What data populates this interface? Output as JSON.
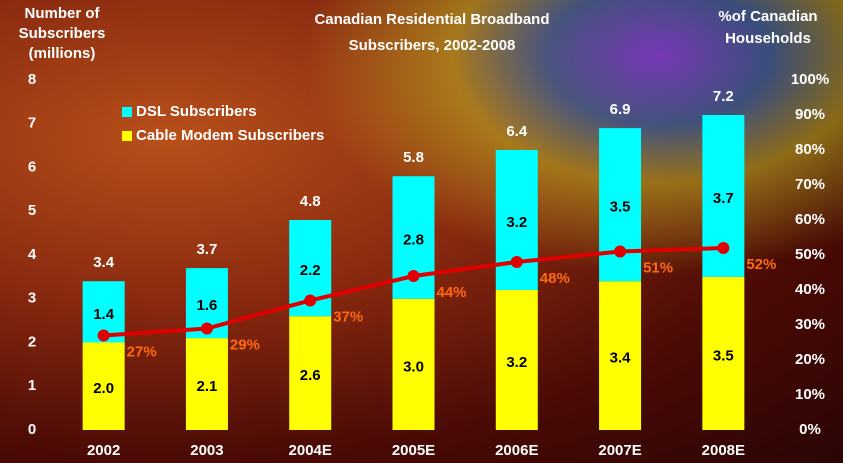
{
  "chart_data": {
    "type": "stacked_bar_line",
    "title": [
      "Canadian Residential Broadband",
      "Subscribers, 2002-2008"
    ],
    "y_label": [
      "Number of",
      "Subscribers",
      "(millions)"
    ],
    "y2_label": [
      "%of Canadian",
      "Households"
    ],
    "categories": [
      "2002",
      "2003",
      "2004E",
      "2005E",
      "2006E",
      "2007E",
      "2008E"
    ],
    "series": [
      {
        "name": "DSL Subscribers",
        "color": "#00ffff",
        "values": [
          1.4,
          1.6,
          2.2,
          2.8,
          3.2,
          3.5,
          3.7
        ]
      },
      {
        "name": "Cable Modem Subscribers",
        "color": "#ffff00",
        "values": [
          2.0,
          2.1,
          2.6,
          3.0,
          3.2,
          3.4,
          3.5
        ],
        "value_labels": [
          "2.0",
          "2.1",
          "2.6",
          "3.0",
          "3.2",
          "3.4",
          "3.5"
        ]
      }
    ],
    "totals": [
      3.4,
      3.7,
      4.8,
      5.8,
      6.4,
      6.9,
      7.2
    ],
    "line": {
      "axis": "y2",
      "color": "#e00000",
      "label_color": "#ff6a10",
      "values": [
        27,
        29,
        37,
        44,
        48,
        51,
        52
      ],
      "value_labels": [
        "27%",
        "29%",
        "37%",
        "44%",
        "48%",
        "51%",
        "52%"
      ]
    },
    "ylim": [
      0,
      8
    ],
    "yticks": [
      0,
      1,
      2,
      3,
      4,
      5,
      6,
      7,
      8
    ],
    "y2lim": [
      0,
      100
    ],
    "y2ticks": [
      {
        "value": 0,
        "label": "0%"
      },
      {
        "value": 10,
        "label": "10%"
      },
      {
        "value": 20,
        "label": "20%"
      },
      {
        "value": 30,
        "label": "30%"
      },
      {
        "value": 40,
        "label": "40%"
      },
      {
        "value": 50,
        "label": "50%"
      },
      {
        "value": 60,
        "label": "60%"
      },
      {
        "value": 70,
        "label": "70%"
      },
      {
        "value": 80,
        "label": "80%"
      },
      {
        "value": 90,
        "label": "90%"
      },
      {
        "value": 100,
        "label": "100%"
      }
    ]
  }
}
